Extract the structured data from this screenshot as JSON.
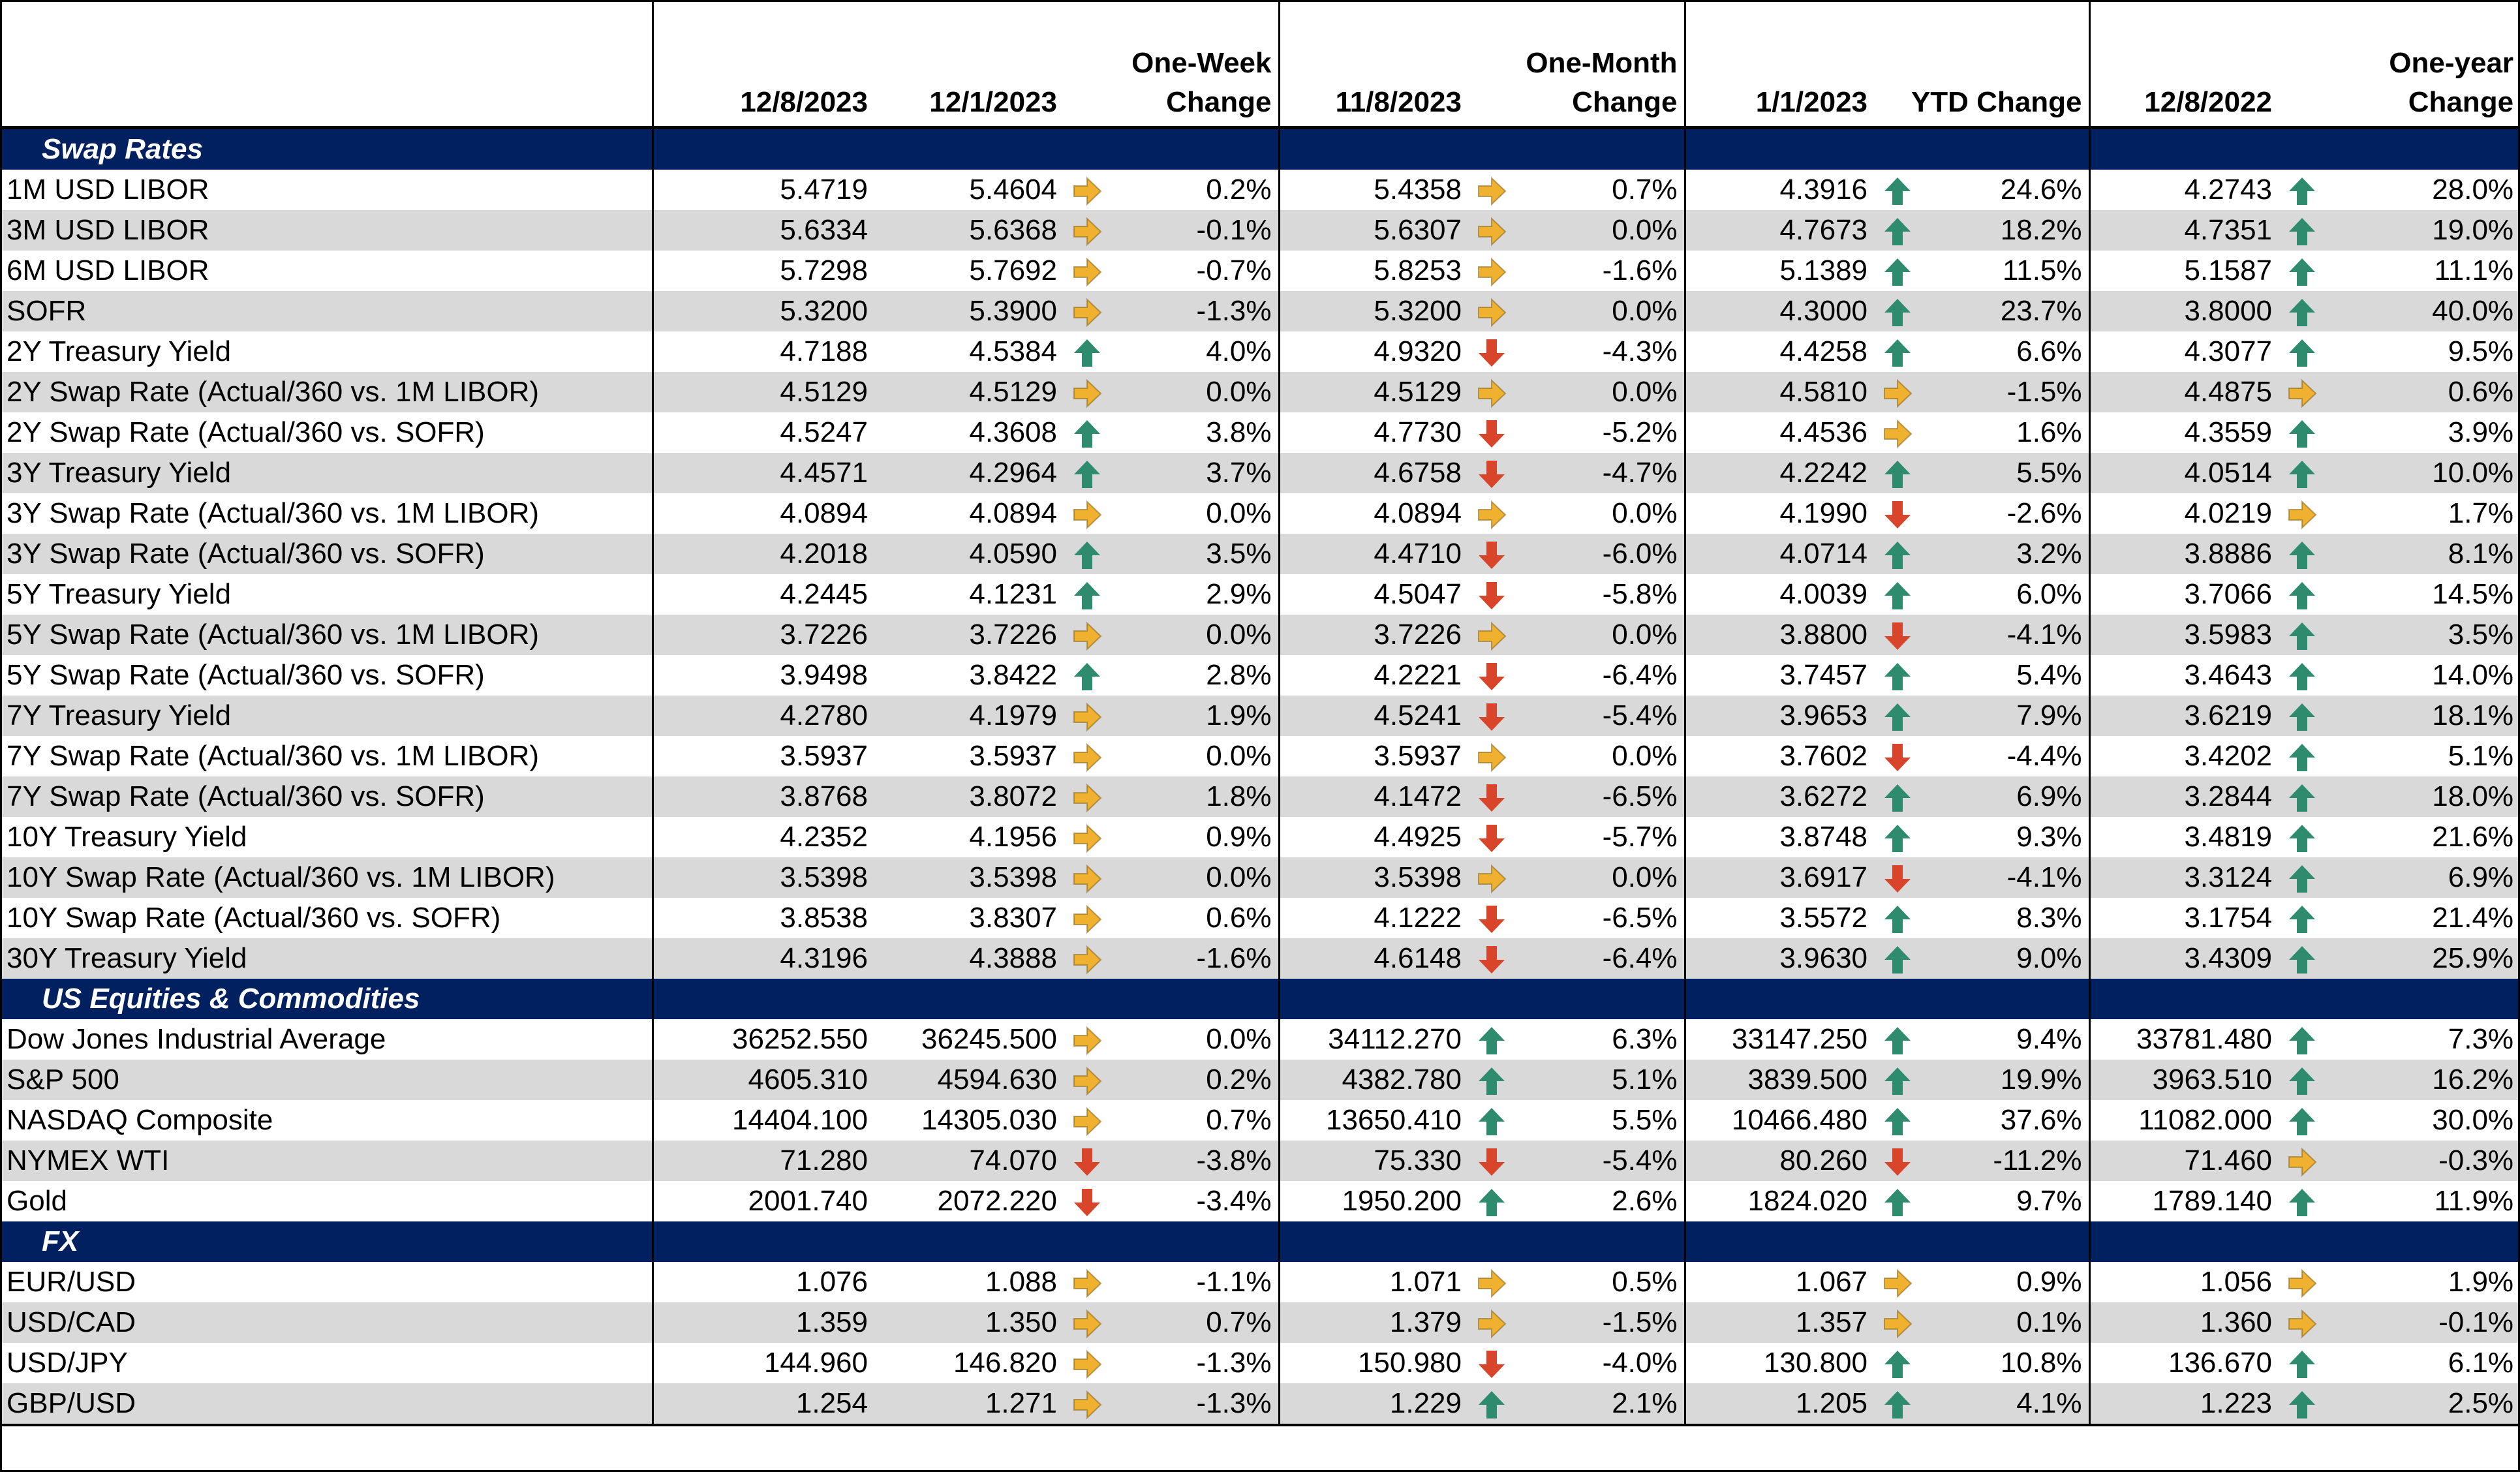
{
  "headers": {
    "label": "",
    "c1": "12/8/2023",
    "c2": "12/1/2023",
    "c3": "One-Week Change",
    "c4": "11/8/2023",
    "c5": "One-Month Change",
    "c6": "1/1/2023",
    "c7": "YTD Change",
    "c8": "12/8/2022",
    "c9": "One-year Change"
  },
  "arrow_colors": {
    "up": "#2e8b6e",
    "down": "#d9452b",
    "side": "#f0b030"
  },
  "sections": [
    {
      "title": "Swap Rates",
      "rows": [
        {
          "label": "1M USD LIBOR",
          "v1": "5.4719",
          "v2": "5.4604",
          "a2": "side",
          "c2": "0.2%",
          "v3": "5.4358",
          "a3": "side",
          "c3": "0.7%",
          "v4": "4.3916",
          "a4": "up",
          "c4": "24.6%",
          "v5": "4.2743",
          "a5": "up",
          "c5": "28.0%"
        },
        {
          "label": "3M USD LIBOR",
          "v1": "5.6334",
          "v2": "5.6368",
          "a2": "side",
          "c2": "-0.1%",
          "v3": "5.6307",
          "a3": "side",
          "c3": "0.0%",
          "v4": "4.7673",
          "a4": "up",
          "c4": "18.2%",
          "v5": "4.7351",
          "a5": "up",
          "c5": "19.0%"
        },
        {
          "label": "6M USD LIBOR",
          "v1": "5.7298",
          "v2": "5.7692",
          "a2": "side",
          "c2": "-0.7%",
          "v3": "5.8253",
          "a3": "side",
          "c3": "-1.6%",
          "v4": "5.1389",
          "a4": "up",
          "c4": "11.5%",
          "v5": "5.1587",
          "a5": "up",
          "c5": "11.1%"
        },
        {
          "label": "SOFR",
          "v1": "5.3200",
          "v2": "5.3900",
          "a2": "side",
          "c2": "-1.3%",
          "v3": "5.3200",
          "a3": "side",
          "c3": "0.0%",
          "v4": "4.3000",
          "a4": "up",
          "c4": "23.7%",
          "v5": "3.8000",
          "a5": "up",
          "c5": "40.0%"
        },
        {
          "label": "2Y Treasury Yield",
          "v1": "4.7188",
          "v2": "4.5384",
          "a2": "up",
          "c2": "4.0%",
          "v3": "4.9320",
          "a3": "down",
          "c3": "-4.3%",
          "v4": "4.4258",
          "a4": "up",
          "c4": "6.6%",
          "v5": "4.3077",
          "a5": "up",
          "c5": "9.5%"
        },
        {
          "label": "2Y Swap Rate (Actual/360 vs. 1M LIBOR)",
          "v1": "4.5129",
          "v2": "4.5129",
          "a2": "side",
          "c2": "0.0%",
          "v3": "4.5129",
          "a3": "side",
          "c3": "0.0%",
          "v4": "4.5810",
          "a4": "side",
          "c4": "-1.5%",
          "v5": "4.4875",
          "a5": "side",
          "c5": "0.6%"
        },
        {
          "label": "2Y Swap Rate (Actual/360 vs. SOFR)",
          "v1": "4.5247",
          "v2": "4.3608",
          "a2": "up",
          "c2": "3.8%",
          "v3": "4.7730",
          "a3": "down",
          "c3": "-5.2%",
          "v4": "4.4536",
          "a4": "side",
          "c4": "1.6%",
          "v5": "4.3559",
          "a5": "up",
          "c5": "3.9%"
        },
        {
          "label": "3Y Treasury Yield",
          "v1": "4.4571",
          "v2": "4.2964",
          "a2": "up",
          "c2": "3.7%",
          "v3": "4.6758",
          "a3": "down",
          "c3": "-4.7%",
          "v4": "4.2242",
          "a4": "up",
          "c4": "5.5%",
          "v5": "4.0514",
          "a5": "up",
          "c5": "10.0%"
        },
        {
          "label": "3Y Swap Rate (Actual/360 vs. 1M LIBOR)",
          "v1": "4.0894",
          "v2": "4.0894",
          "a2": "side",
          "c2": "0.0%",
          "v3": "4.0894",
          "a3": "side",
          "c3": "0.0%",
          "v4": "4.1990",
          "a4": "down",
          "c4": "-2.6%",
          "v5": "4.0219",
          "a5": "side",
          "c5": "1.7%"
        },
        {
          "label": "3Y Swap Rate (Actual/360 vs. SOFR)",
          "v1": "4.2018",
          "v2": "4.0590",
          "a2": "up",
          "c2": "3.5%",
          "v3": "4.4710",
          "a3": "down",
          "c3": "-6.0%",
          "v4": "4.0714",
          "a4": "up",
          "c4": "3.2%",
          "v5": "3.8886",
          "a5": "up",
          "c5": "8.1%"
        },
        {
          "label": "5Y Treasury Yield",
          "v1": "4.2445",
          "v2": "4.1231",
          "a2": "up",
          "c2": "2.9%",
          "v3": "4.5047",
          "a3": "down",
          "c3": "-5.8%",
          "v4": "4.0039",
          "a4": "up",
          "c4": "6.0%",
          "v5": "3.7066",
          "a5": "up",
          "c5": "14.5%"
        },
        {
          "label": "5Y Swap Rate (Actual/360 vs. 1M LIBOR)",
          "v1": "3.7226",
          "v2": "3.7226",
          "a2": "side",
          "c2": "0.0%",
          "v3": "3.7226",
          "a3": "side",
          "c3": "0.0%",
          "v4": "3.8800",
          "a4": "down",
          "c4": "-4.1%",
          "v5": "3.5983",
          "a5": "up",
          "c5": "3.5%"
        },
        {
          "label": "5Y Swap Rate (Actual/360 vs. SOFR)",
          "v1": "3.9498",
          "v2": "3.8422",
          "a2": "up",
          "c2": "2.8%",
          "v3": "4.2221",
          "a3": "down",
          "c3": "-6.4%",
          "v4": "3.7457",
          "a4": "up",
          "c4": "5.4%",
          "v5": "3.4643",
          "a5": "up",
          "c5": "14.0%"
        },
        {
          "label": "7Y Treasury Yield",
          "v1": "4.2780",
          "v2": "4.1979",
          "a2": "side",
          "c2": "1.9%",
          "v3": "4.5241",
          "a3": "down",
          "c3": "-5.4%",
          "v4": "3.9653",
          "a4": "up",
          "c4": "7.9%",
          "v5": "3.6219",
          "a5": "up",
          "c5": "18.1%"
        },
        {
          "label": "7Y Swap Rate (Actual/360 vs. 1M LIBOR)",
          "v1": "3.5937",
          "v2": "3.5937",
          "a2": "side",
          "c2": "0.0%",
          "v3": "3.5937",
          "a3": "side",
          "c3": "0.0%",
          "v4": "3.7602",
          "a4": "down",
          "c4": "-4.4%",
          "v5": "3.4202",
          "a5": "up",
          "c5": "5.1%"
        },
        {
          "label": "7Y Swap Rate (Actual/360 vs. SOFR)",
          "v1": "3.8768",
          "v2": "3.8072",
          "a2": "side",
          "c2": "1.8%",
          "v3": "4.1472",
          "a3": "down",
          "c3": "-6.5%",
          "v4": "3.6272",
          "a4": "up",
          "c4": "6.9%",
          "v5": "3.2844",
          "a5": "up",
          "c5": "18.0%"
        },
        {
          "label": "10Y Treasury Yield",
          "v1": "4.2352",
          "v2": "4.1956",
          "a2": "side",
          "c2": "0.9%",
          "v3": "4.4925",
          "a3": "down",
          "c3": "-5.7%",
          "v4": "3.8748",
          "a4": "up",
          "c4": "9.3%",
          "v5": "3.4819",
          "a5": "up",
          "c5": "21.6%"
        },
        {
          "label": "10Y Swap Rate (Actual/360 vs. 1M LIBOR)",
          "v1": "3.5398",
          "v2": "3.5398",
          "a2": "side",
          "c2": "0.0%",
          "v3": "3.5398",
          "a3": "side",
          "c3": "0.0%",
          "v4": "3.6917",
          "a4": "down",
          "c4": "-4.1%",
          "v5": "3.3124",
          "a5": "up",
          "c5": "6.9%"
        },
        {
          "label": "10Y Swap Rate (Actual/360 vs. SOFR)",
          "v1": "3.8538",
          "v2": "3.8307",
          "a2": "side",
          "c2": "0.6%",
          "v3": "4.1222",
          "a3": "down",
          "c3": "-6.5%",
          "v4": "3.5572",
          "a4": "up",
          "c4": "8.3%",
          "v5": "3.1754",
          "a5": "up",
          "c5": "21.4%"
        },
        {
          "label": "30Y Treasury Yield",
          "v1": "4.3196",
          "v2": "4.3888",
          "a2": "side",
          "c2": "-1.6%",
          "v3": "4.6148",
          "a3": "down",
          "c3": "-6.4%",
          "v4": "3.9630",
          "a4": "up",
          "c4": "9.0%",
          "v5": "3.4309",
          "a5": "up",
          "c5": "25.9%"
        }
      ]
    },
    {
      "title": "US Equities & Commodities",
      "rows": [
        {
          "label": "Dow Jones Industrial Average",
          "v1": "36252.550",
          "v2": "36245.500",
          "a2": "side",
          "c2": "0.0%",
          "v3": "34112.270",
          "a3": "up",
          "c3": "6.3%",
          "v4": "33147.250",
          "a4": "up",
          "c4": "9.4%",
          "v5": "33781.480",
          "a5": "up",
          "c5": "7.3%"
        },
        {
          "label": "S&P 500",
          "v1": "4605.310",
          "v2": "4594.630",
          "a2": "side",
          "c2": "0.2%",
          "v3": "4382.780",
          "a3": "up",
          "c3": "5.1%",
          "v4": "3839.500",
          "a4": "up",
          "c4": "19.9%",
          "v5": "3963.510",
          "a5": "up",
          "c5": "16.2%"
        },
        {
          "label": "NASDAQ Composite",
          "v1": "14404.100",
          "v2": "14305.030",
          "a2": "side",
          "c2": "0.7%",
          "v3": "13650.410",
          "a3": "up",
          "c3": "5.5%",
          "v4": "10466.480",
          "a4": "up",
          "c4": "37.6%",
          "v5": "11082.000",
          "a5": "up",
          "c5": "30.0%"
        },
        {
          "label": "NYMEX WTI",
          "v1": "71.280",
          "v2": "74.070",
          "a2": "down",
          "c2": "-3.8%",
          "v3": "75.330",
          "a3": "down",
          "c3": "-5.4%",
          "v4": "80.260",
          "a4": "down",
          "c4": "-11.2%",
          "v5": "71.460",
          "a5": "side",
          "c5": "-0.3%"
        },
        {
          "label": "Gold",
          "v1": "2001.740",
          "v2": "2072.220",
          "a2": "down",
          "c2": "-3.4%",
          "v3": "1950.200",
          "a3": "up",
          "c3": "2.6%",
          "v4": "1824.020",
          "a4": "up",
          "c4": "9.7%",
          "v5": "1789.140",
          "a5": "up",
          "c5": "11.9%"
        }
      ]
    },
    {
      "title": "FX",
      "rows": [
        {
          "label": "EUR/USD",
          "v1": "1.076",
          "v2": "1.088",
          "a2": "side",
          "c2": "-1.1%",
          "v3": "1.071",
          "a3": "side",
          "c3": "0.5%",
          "v4": "1.067",
          "a4": "side",
          "c4": "0.9%",
          "v5": "1.056",
          "a5": "side",
          "c5": "1.9%"
        },
        {
          "label": "USD/CAD",
          "v1": "1.359",
          "v2": "1.350",
          "a2": "side",
          "c2": "0.7%",
          "v3": "1.379",
          "a3": "side",
          "c3": "-1.5%",
          "v4": "1.357",
          "a4": "side",
          "c4": "0.1%",
          "v5": "1.360",
          "a5": "side",
          "c5": "-0.1%"
        },
        {
          "label": "USD/JPY",
          "v1": "144.960",
          "v2": "146.820",
          "a2": "side",
          "c2": "-1.3%",
          "v3": "150.980",
          "a3": "down",
          "c3": "-4.0%",
          "v4": "130.800",
          "a4": "up",
          "c4": "10.8%",
          "v5": "136.670",
          "a5": "up",
          "c5": "6.1%"
        },
        {
          "label": "GBP/USD",
          "v1": "1.254",
          "v2": "1.271",
          "a2": "side",
          "c2": "-1.3%",
          "v3": "1.229",
          "a3": "up",
          "c3": "2.1%",
          "v4": "1.205",
          "a4": "up",
          "c4": "4.1%",
          "v5": "1.223",
          "a5": "up",
          "c5": "2.5%"
        }
      ]
    }
  ]
}
